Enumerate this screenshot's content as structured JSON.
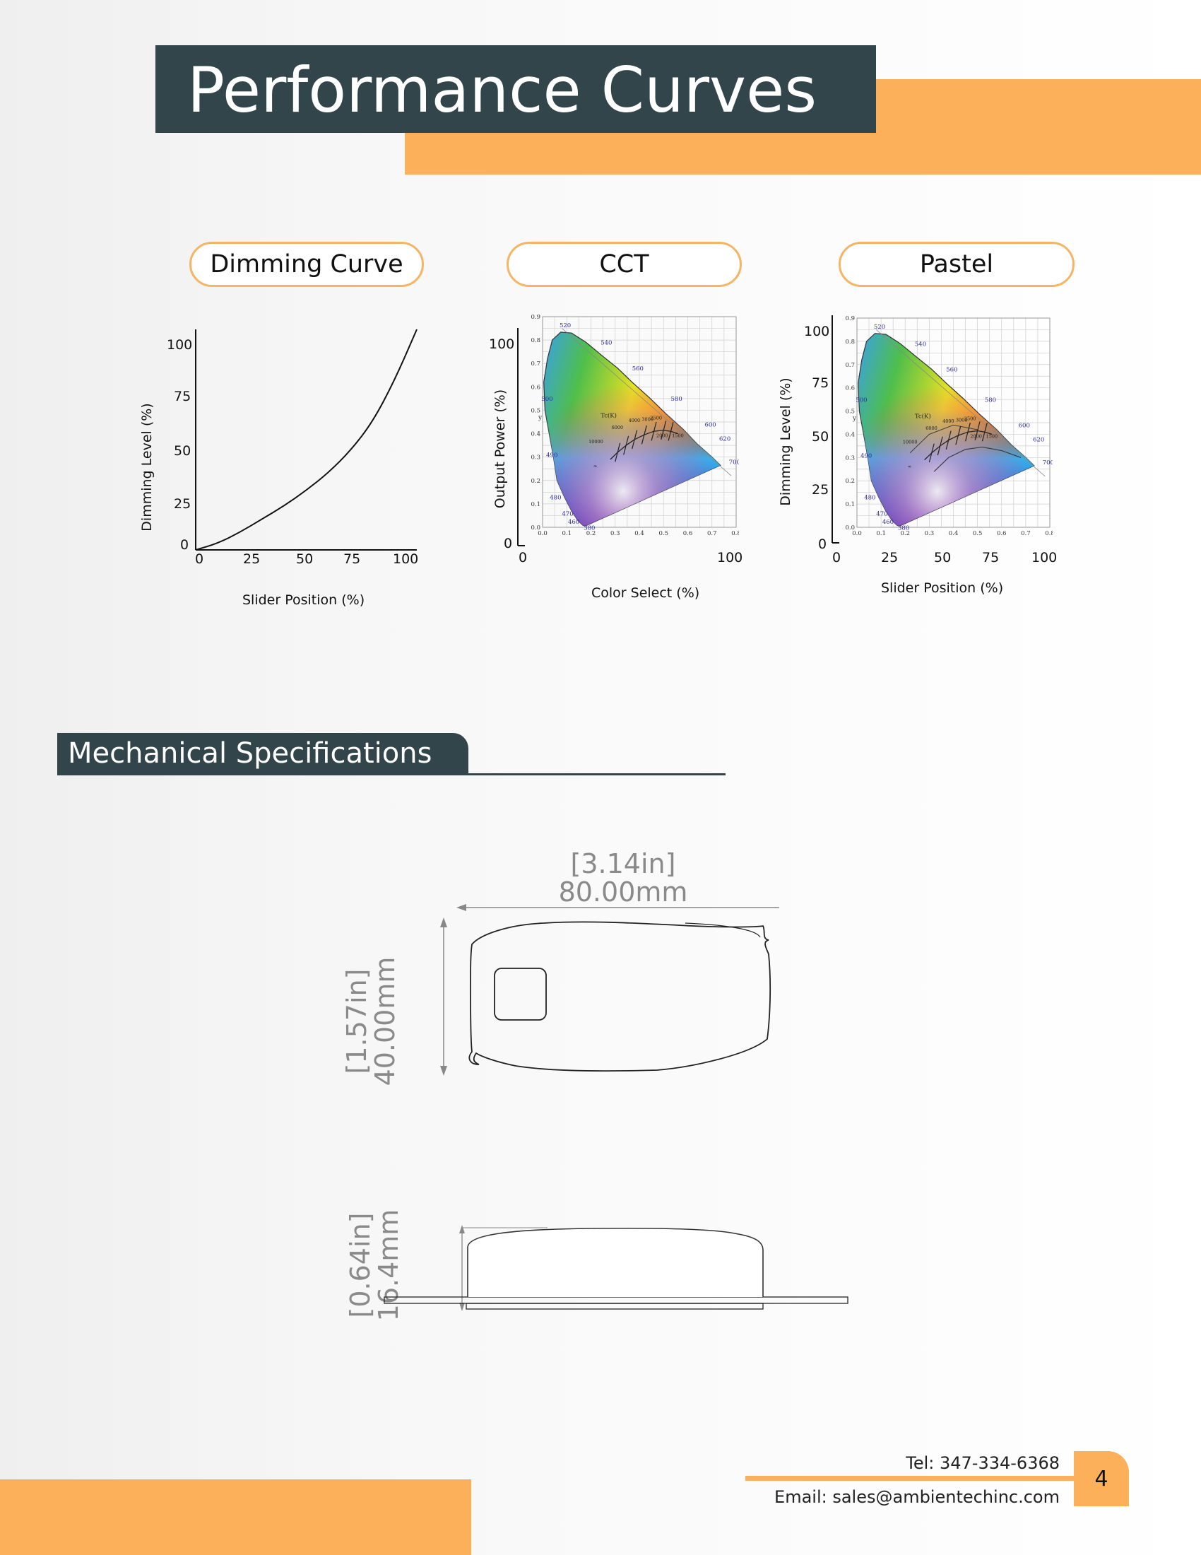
{
  "header": {
    "title": "Performance Curves"
  },
  "panels": {
    "dimming": {
      "label": "Dimming Curve",
      "y_label": "Dimming Level (%)",
      "x_label": "Slider Position (%)",
      "y_ticks": [
        "100",
        "75",
        "50",
        "25",
        "0"
      ],
      "x_ticks": [
        "0",
        "25",
        "50",
        "75",
        "100"
      ]
    },
    "cct": {
      "label": "CCT",
      "y_label": "Output Power (%)",
      "x_label": "Color Select (%)",
      "y_ticks": [
        "100",
        "0"
      ],
      "x_ticks": [
        "0",
        "100"
      ]
    },
    "pastel": {
      "label": "Pastel",
      "y_label": "Dimming Level (%)",
      "x_label": "Slider Position (%)",
      "y_ticks": [
        "100",
        "75",
        "50",
        "25",
        "0"
      ],
      "x_ticks": [
        "0",
        "25",
        "50",
        "75",
        "100"
      ]
    }
  },
  "cie": {
    "y_ticks": [
      "0.9",
      "0.8",
      "0.7",
      "0.6",
      "0.5",
      "0.4",
      "0.3",
      "0.2",
      "0.1",
      "0.0"
    ],
    "x_ticks": [
      "0.0",
      "0.1",
      "0.2",
      "0.3",
      "0.4",
      "0.5",
      "0.6",
      "0.7",
      "0.8"
    ],
    "y_axis": "y",
    "tc_label": "Tc(K)",
    "wavelengths": [
      "520",
      "540",
      "560",
      "580",
      "600",
      "620",
      "700",
      "500",
      "490",
      "480",
      "470",
      "460",
      "380"
    ],
    "temps": [
      "10000",
      "6000",
      "4000",
      "3000",
      "2500",
      "2000",
      "1500",
      "∞"
    ]
  },
  "chart_data": [
    {
      "type": "line",
      "title": "Dimming Curve",
      "xlabel": "Slider Position (%)",
      "ylabel": "Dimming Level (%)",
      "xlim": [
        0,
        100
      ],
      "ylim": [
        0,
        100
      ],
      "x": [
        0,
        10,
        20,
        30,
        40,
        50,
        60,
        70,
        80,
        90,
        100
      ],
      "series": [
        {
          "values": [
            0,
            3,
            8,
            14,
            20,
            27,
            35,
            45,
            58,
            77,
            100
          ]
        }
      ]
    }
  ],
  "mech": {
    "title": "Mechanical Specifications",
    "top_width_in": "[3.14in]",
    "top_width_mm": "80.00mm",
    "top_height_in": "[1.57in]",
    "top_height_mm": "40.00mm",
    "side_height_in": "[0.64in]",
    "side_height_mm": "16.4mm"
  },
  "footer": {
    "tel": "Tel: 347-334-6368",
    "email": "Email: sales@ambientechinc.com",
    "page": "4"
  },
  "colors": {
    "accent": "#fbb059",
    "dark": "#32454a"
  }
}
